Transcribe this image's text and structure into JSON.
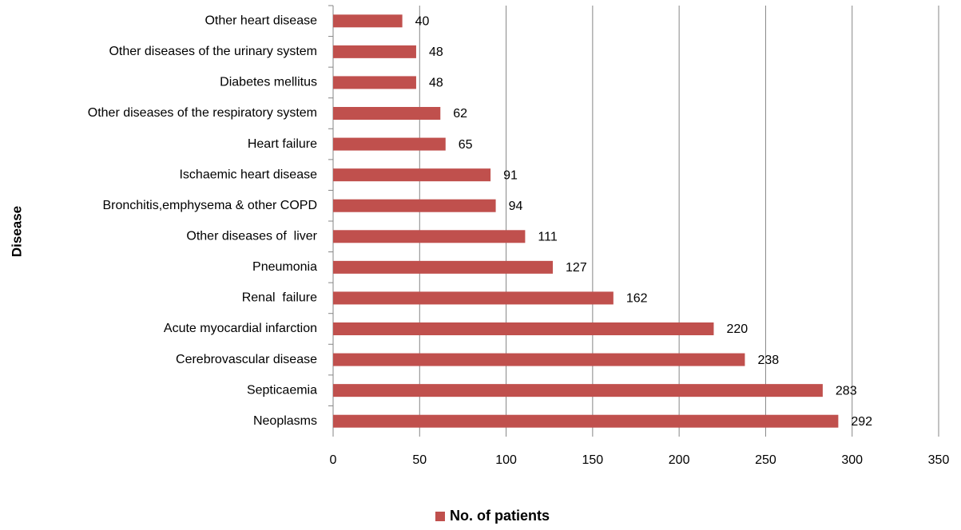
{
  "chart_data": {
    "type": "bar",
    "orientation": "horizontal",
    "ylabel": "Disease",
    "categories": [
      "Other heart disease",
      "Other diseases of the urinary system",
      "Diabetes mellitus",
      "Other diseases of the respiratory system",
      "Heart failure",
      "Ischaemic heart disease",
      "Bronchitis,emphysema & other COPD",
      "Other diseases of  liver",
      "Pneumonia",
      "Renal  failure",
      "Acute myocardial infarction",
      "Cerebrovascular disease",
      "Septicaemia",
      "Neoplasms"
    ],
    "series": [
      {
        "name": "No. of patients",
        "color": "#c0504d",
        "values": [
          40,
          48,
          48,
          62,
          65,
          91,
          94,
          111,
          127,
          162,
          220,
          238,
          283,
          292
        ]
      }
    ],
    "xlim": [
      0,
      350
    ],
    "xticks": [
      0,
      50,
      100,
      150,
      200,
      250,
      300,
      350
    ],
    "grid": true,
    "legend": "bottom"
  }
}
